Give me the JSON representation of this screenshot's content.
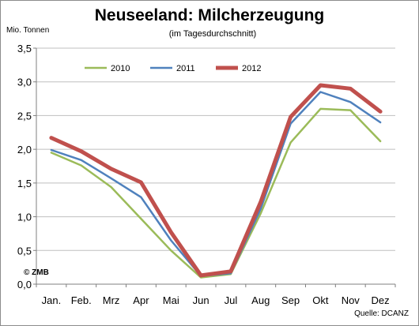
{
  "chart_data": {
    "type": "line",
    "title": "Neuseeland: Milcherzeugung",
    "subtitle": "(im Tagesdurchschnitt)",
    "ylabel": "Mio. Tonnen",
    "xlabel": "",
    "categories": [
      "Jan.",
      "Feb.",
      "Mrz",
      "Apr",
      "Mai",
      "Jun",
      "Jul",
      "Aug",
      "Sep",
      "Okt",
      "Nov",
      "Dez"
    ],
    "ylim": [
      0,
      3.5
    ],
    "yticks": [
      "0,0",
      "0,5",
      "1,0",
      "1,5",
      "2,0",
      "2,5",
      "3,0",
      "3,5"
    ],
    "grid": true,
    "legend_position": "top",
    "series": [
      {
        "name": "2010",
        "color": "#9bbb59",
        "width": 2.5,
        "values": [
          1.95,
          1.76,
          1.44,
          0.97,
          0.5,
          0.1,
          0.15,
          1.05,
          2.1,
          2.6,
          2.58,
          2.12
        ]
      },
      {
        "name": "2011",
        "color": "#4f81bd",
        "width": 2.5,
        "values": [
          1.99,
          1.84,
          1.57,
          1.29,
          0.65,
          0.12,
          0.16,
          1.12,
          2.38,
          2.85,
          2.7,
          2.4
        ]
      },
      {
        "name": "2012",
        "color": "#c0504d",
        "width": 5,
        "values": [
          2.17,
          1.97,
          1.71,
          1.51,
          0.77,
          0.13,
          0.19,
          1.22,
          2.48,
          2.95,
          2.9,
          2.56
        ]
      }
    ],
    "annotations": {
      "copyright": "© ZMB",
      "source": "Quelle: DCANZ"
    }
  }
}
